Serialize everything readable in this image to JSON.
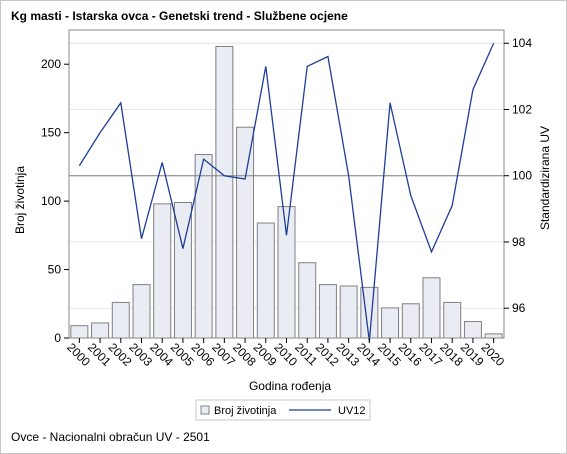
{
  "title": "Kg masti - Istarska ovca - Genetski trend - Službene ocjene",
  "footnote": "Ovce - Nacionalni obračun UV - 2501",
  "chart_data": {
    "type": "bar+line",
    "categories": [
      "2000",
      "2001",
      "2002",
      "2003",
      "2004",
      "2005",
      "2006",
      "2007",
      "2008",
      "2009",
      "2010",
      "2011",
      "2012",
      "2013",
      "2014",
      "2015",
      "2016",
      "2017",
      "2018",
      "2019",
      "2020"
    ],
    "series": [
      {
        "name": "Broj životinja",
        "type": "bar",
        "axis": "left",
        "values": [
          9,
          11,
          26,
          39,
          98,
          99,
          134,
          213,
          154,
          84,
          96,
          55,
          39,
          38,
          37,
          22,
          25,
          44,
          26,
          12,
          3
        ]
      },
      {
        "name": "UV12",
        "type": "line",
        "axis": "right",
        "values": [
          100.3,
          101.3,
          102.2,
          98.1,
          100.4,
          97.8,
          100.5,
          100.0,
          99.9,
          103.3,
          98.2,
          103.3,
          103.6,
          100.0,
          95.0,
          102.2,
          99.4,
          97.7,
          99.1,
          102.6,
          104.0
        ]
      }
    ],
    "xlabel": "Godina rođenja",
    "ylabel": "Broj životinja",
    "y2label": "Standardizirana UV",
    "ylim": [
      0,
      225
    ],
    "y2lim": [
      95.1,
      104.4
    ],
    "yticks": [
      0,
      50,
      100,
      150,
      200
    ],
    "y2ticks": [
      96,
      98,
      100,
      102,
      104
    ],
    "y2reference": 100,
    "legend": [
      "Broj životinja",
      "UV12"
    ],
    "legend_position": "bottom",
    "colors": {
      "bar_fill": "#e9ecf2",
      "bar_stroke": "#7d8187",
      "line": "#1f3d99",
      "grid": "#e6e6e6",
      "reference": "#7f7f7f"
    }
  }
}
